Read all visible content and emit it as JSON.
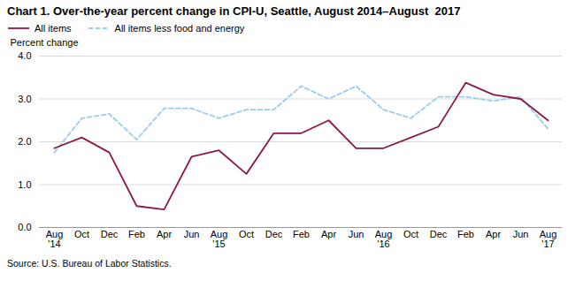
{
  "chart_data": {
    "type": "line",
    "title": "Chart 1. Over-the-year percent change in CPI-U, Seattle, August 2014–August  2017",
    "ylabel": "Percent change",
    "source": "Source: U.S. Bureau of Labor Statistics.",
    "categories": [
      "Aug\n'14",
      "Oct",
      "Dec",
      "Feb",
      "Apr",
      "Jun",
      "Aug\n'15",
      "Oct",
      "Dec",
      "Feb",
      "Apr",
      "Jun",
      "Aug\n'16",
      "Oct",
      "Dec",
      "Feb",
      "Apr",
      "Jun",
      "Aug\n'17"
    ],
    "series": [
      {
        "name": "All items",
        "color": "#8B1A4A",
        "line_style": "solid",
        "values": [
          1.85,
          2.1,
          1.75,
          0.5,
          0.42,
          1.65,
          1.8,
          1.25,
          2.2,
          2.2,
          2.5,
          1.85,
          1.85,
          2.1,
          2.35,
          3.38,
          3.1,
          3.0,
          2.5
        ]
      },
      {
        "name": "All items less food and energy",
        "color": "#99CCEE",
        "line_style": "dashed",
        "values": [
          1.75,
          2.55,
          2.65,
          2.05,
          2.78,
          2.78,
          2.55,
          2.75,
          2.75,
          3.3,
          3.0,
          3.3,
          2.75,
          2.55,
          3.05,
          3.05,
          2.95,
          3.05,
          2.3
        ]
      }
    ],
    "ylim": [
      0.0,
      4.0
    ],
    "yticks": [
      {
        "value": 0,
        "label": "0.0"
      },
      {
        "value": 1,
        "label": "1.0"
      },
      {
        "value": 2,
        "label": "2.0"
      },
      {
        "value": 3,
        "label": "3.0"
      },
      {
        "value": 4,
        "label": "4.0"
      }
    ],
    "grid": true,
    "legend": "upper left"
  }
}
